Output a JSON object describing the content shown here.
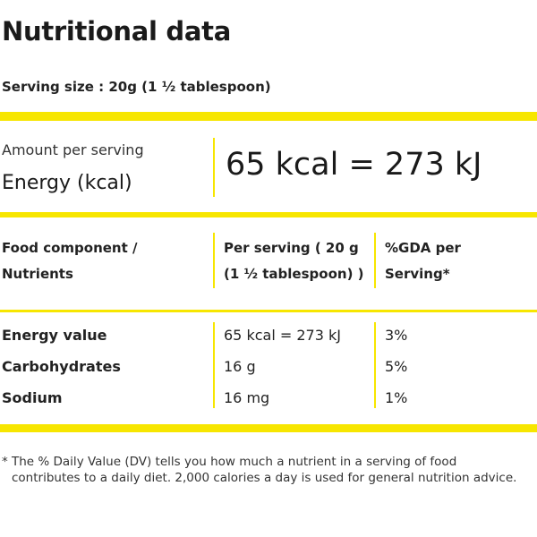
{
  "title": "Nutritional data",
  "serving_size": "Serving size : 20g (1 ½ tablespoon)",
  "summary": {
    "amount_label": "Amount per serving",
    "energy_label": "Energy (kcal)",
    "energy_value": "65 kcal = 273 kJ"
  },
  "table": {
    "headers": {
      "component_line1": "Food component /",
      "component_line2": "Nutrients",
      "per_serving_line1": "Per serving ( 20 g",
      "per_serving_line2": "(1 ½ tablespoon) )",
      "gda_line1": "%GDA per",
      "gda_line2": "Serving*"
    },
    "rows": [
      {
        "name": "Energy value",
        "per_serving": "65 kcal = 273 kJ",
        "gda": "3%"
      },
      {
        "name": "Carbohydrates",
        "per_serving": "16 g",
        "gda": "5%"
      },
      {
        "name": "Sodium",
        "per_serving": "16 mg",
        "gda": "1%"
      }
    ]
  },
  "footnote": {
    "marker": "*",
    "text": "The % Daily Value (DV) tells you how much a nutrient in a serving of food contributes to a daily diet. 2,000 calories a day is used for general nutrition advice."
  },
  "colors": {
    "accent": "#f7e600"
  }
}
